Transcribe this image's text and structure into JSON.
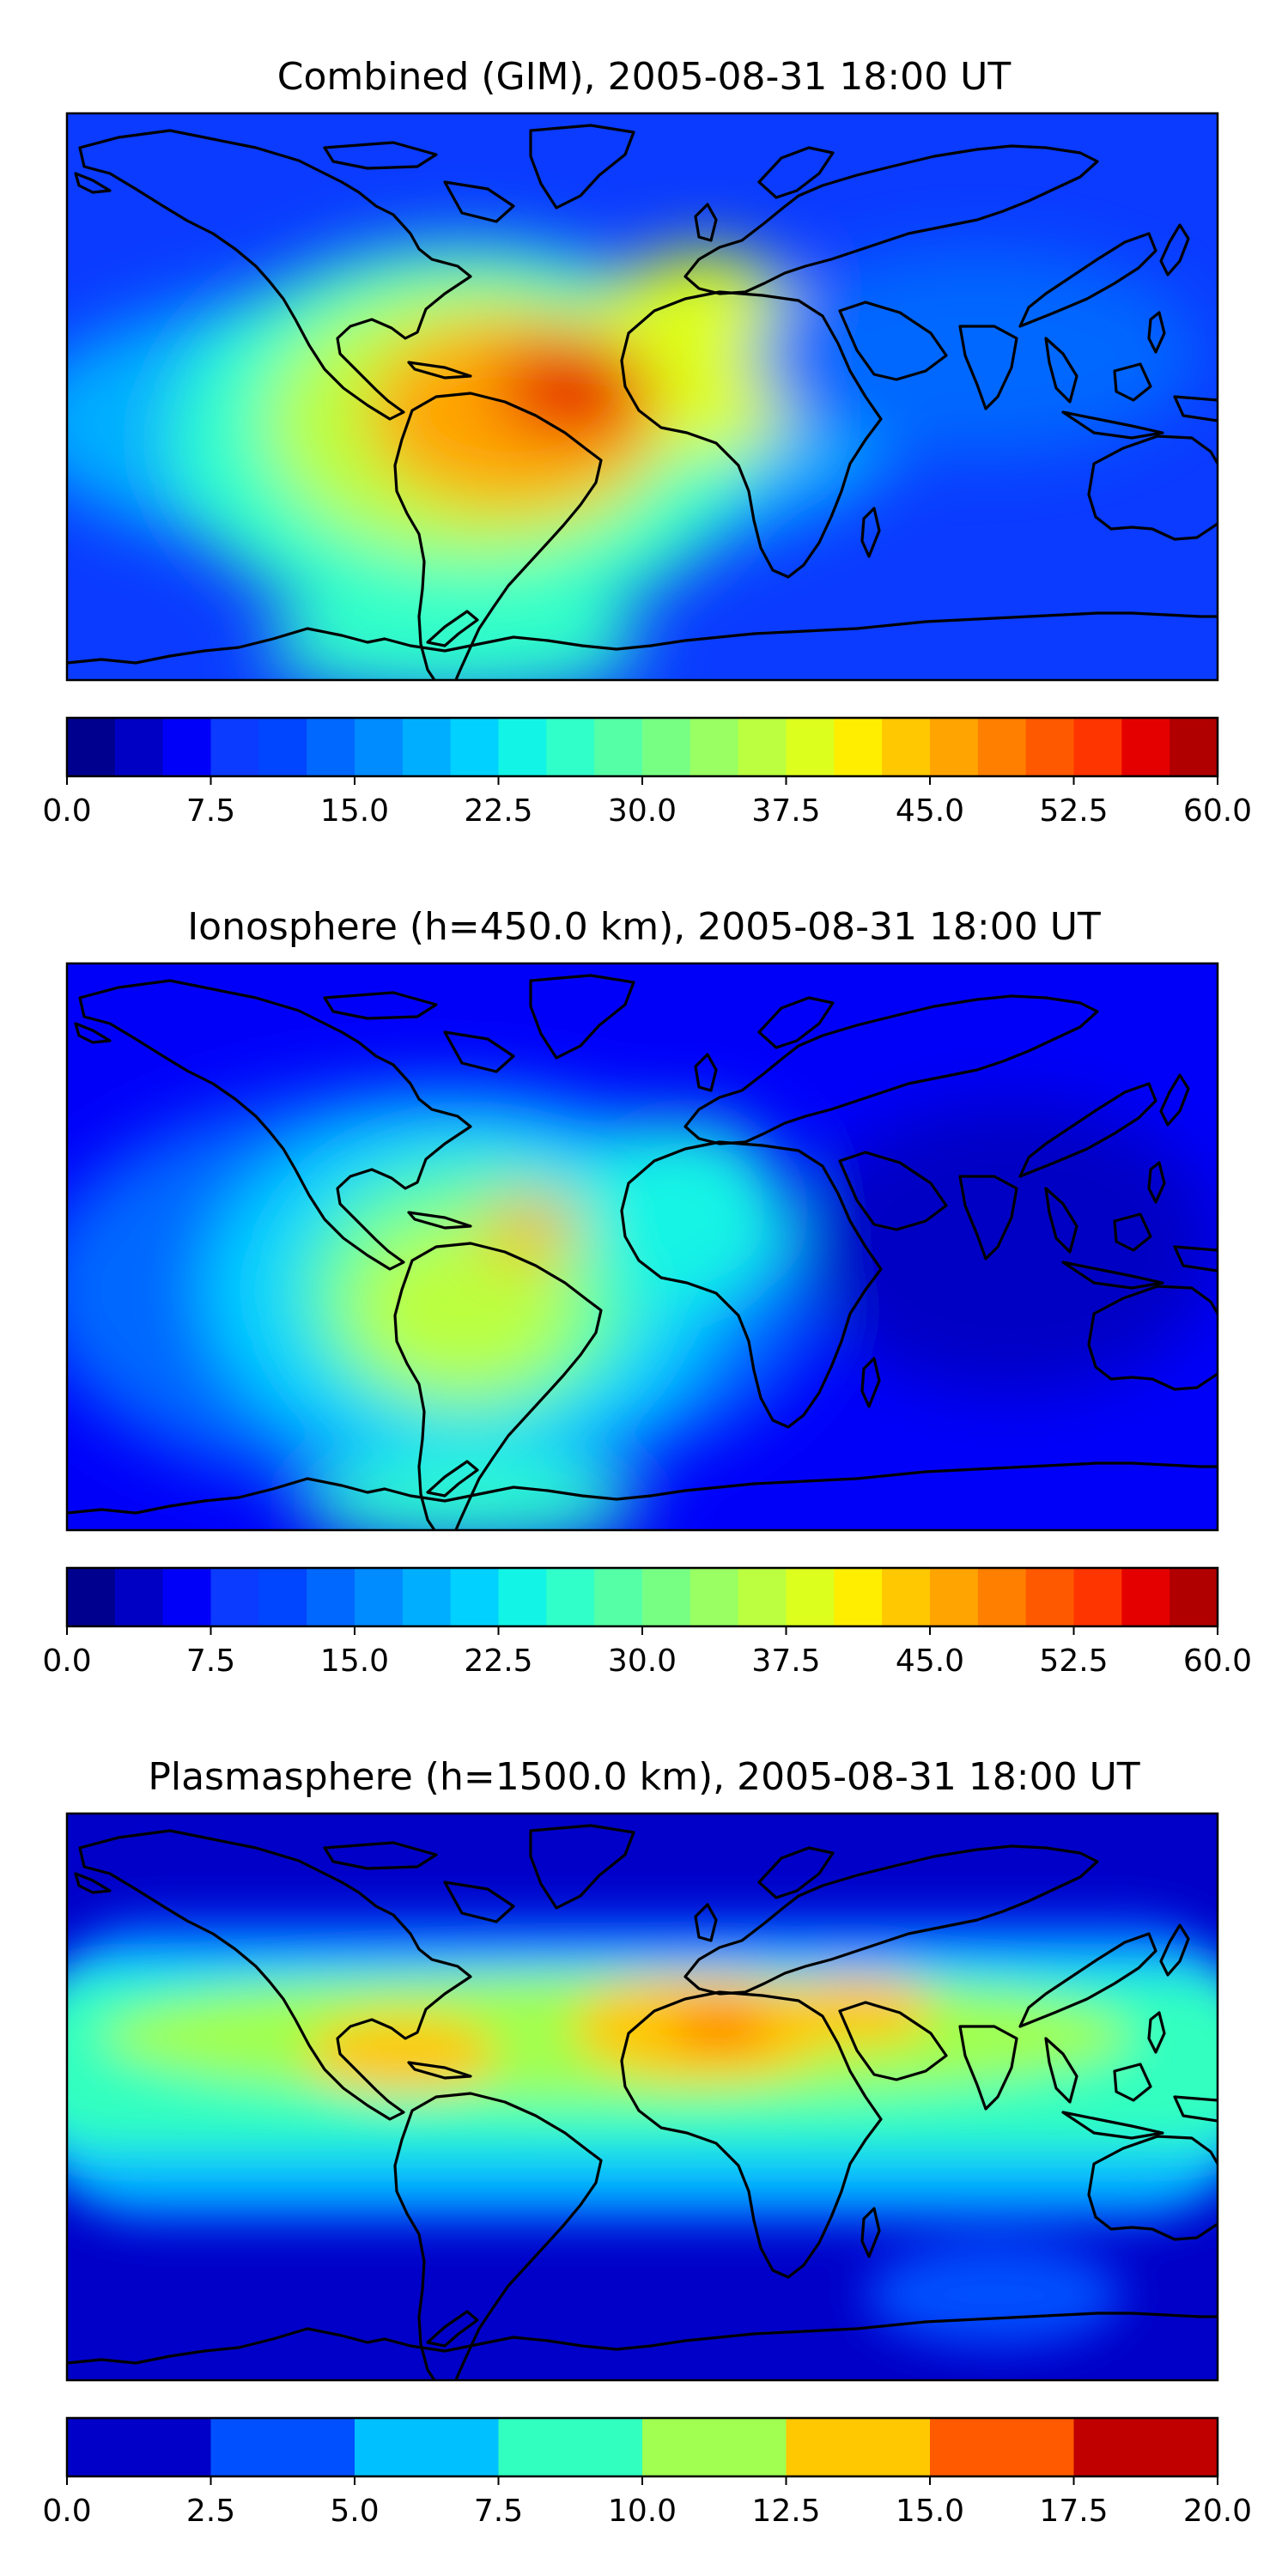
{
  "chart_data": [
    {
      "type": "heatmap",
      "title": "Combined (GIM), 2005-08-31 18:00 UT",
      "variable": "combined",
      "background_color": "#0a3bff",
      "hotspots": [
        {
          "lon": -48,
          "lat": 0,
          "value": 58
        },
        {
          "lon": -55,
          "lat": -10,
          "value": 45
        },
        {
          "lon": -75,
          "lat": 0,
          "value": 40
        },
        {
          "lon": 5,
          "lat": 15,
          "value": 35
        },
        {
          "lon": -50,
          "lat": -25,
          "value": 35
        },
        {
          "lon": -95,
          "lat": 15,
          "value": 28
        },
        {
          "lon": 30,
          "lat": 0,
          "value": 25
        },
        {
          "lon": 70,
          "lat": 10,
          "value": 18
        },
        {
          "lon": -60,
          "lat": -62,
          "value": 26
        },
        {
          "lon": -130,
          "lat": -10,
          "value": 20
        }
      ],
      "colorbar": {
        "ticks": [
          "0.0",
          "7.5",
          "15.0",
          "22.5",
          "30.0",
          "37.5",
          "45.0",
          "52.5",
          "60.0"
        ],
        "range": [
          0,
          60
        ],
        "levels": 24,
        "colors": [
          "#00008f",
          "#0000c4",
          "#0000f9",
          "#0a3bff",
          "#0045ff",
          "#0068ff",
          "#008bff",
          "#00aeff",
          "#00d1ff",
          "#12f4e5",
          "#31ffc9",
          "#55ffa6",
          "#77ff84",
          "#99ff62",
          "#bbff40",
          "#ddff1e",
          "#ffee00",
          "#ffc800",
          "#ffa400",
          "#ff7f00",
          "#ff5900",
          "#ff3500",
          "#e50000",
          "#b00000"
        ]
      }
    },
    {
      "type": "heatmap",
      "title": "Ionosphere  (h=450.0 km), 2005-08-31 18:00 UT",
      "variable": "ionosphere",
      "background_color": "#0000f9",
      "hotspots": [
        {
          "lon": -50,
          "lat": 2,
          "value": 44
        },
        {
          "lon": -60,
          "lat": -12,
          "value": 36
        },
        {
          "lon": -80,
          "lat": 0,
          "value": 32
        },
        {
          "lon": -55,
          "lat": -30,
          "value": 30
        },
        {
          "lon": 0,
          "lat": 10,
          "value": 26
        },
        {
          "lon": -95,
          "lat": 20,
          "value": 22
        },
        {
          "lon": -60,
          "lat": -62,
          "value": 24
        },
        {
          "lon": 15,
          "lat": -20,
          "value": 18
        }
      ],
      "colorbar": {
        "ticks": [
          "0.0",
          "7.5",
          "15.0",
          "22.5",
          "30.0",
          "37.5",
          "45.0",
          "52.5",
          "60.0"
        ],
        "range": [
          0,
          60
        ],
        "levels": 24,
        "colors": [
          "#00008f",
          "#0000c4",
          "#0000f9",
          "#0a3bff",
          "#0045ff",
          "#0068ff",
          "#008bff",
          "#00aeff",
          "#00d1ff",
          "#12f4e5",
          "#31ffc9",
          "#55ffa6",
          "#77ff84",
          "#99ff62",
          "#bbff40",
          "#ddff1e",
          "#ffee00",
          "#ffc800",
          "#ffa400",
          "#ff7f00",
          "#ff5900",
          "#ff3500",
          "#e50000",
          "#b00000"
        ]
      }
    },
    {
      "type": "heatmap",
      "title": "Plasmasphere (h=1500.0 km), 2005-08-31 18:00 UT",
      "variable": "plasmasphere",
      "background_color": "#0000c8",
      "hotspots": [
        {
          "lon": 20,
          "lat": 15,
          "value": 16
        },
        {
          "lon": -70,
          "lat": 10,
          "value": 13
        },
        {
          "lon": 50,
          "lat": 22,
          "value": 12.5
        }
      ],
      "colorbar": {
        "ticks": [
          "0.0",
          "2.5",
          "5.0",
          "7.5",
          "10.0",
          "12.5",
          "15.0",
          "17.5",
          "20.0"
        ],
        "range": [
          0,
          20
        ],
        "levels": 8,
        "colors": [
          "#0000c8",
          "#0050ff",
          "#00c0ff",
          "#30ffc0",
          "#a0ff50",
          "#ffc800",
          "#ff5a00",
          "#c00000"
        ]
      }
    }
  ]
}
